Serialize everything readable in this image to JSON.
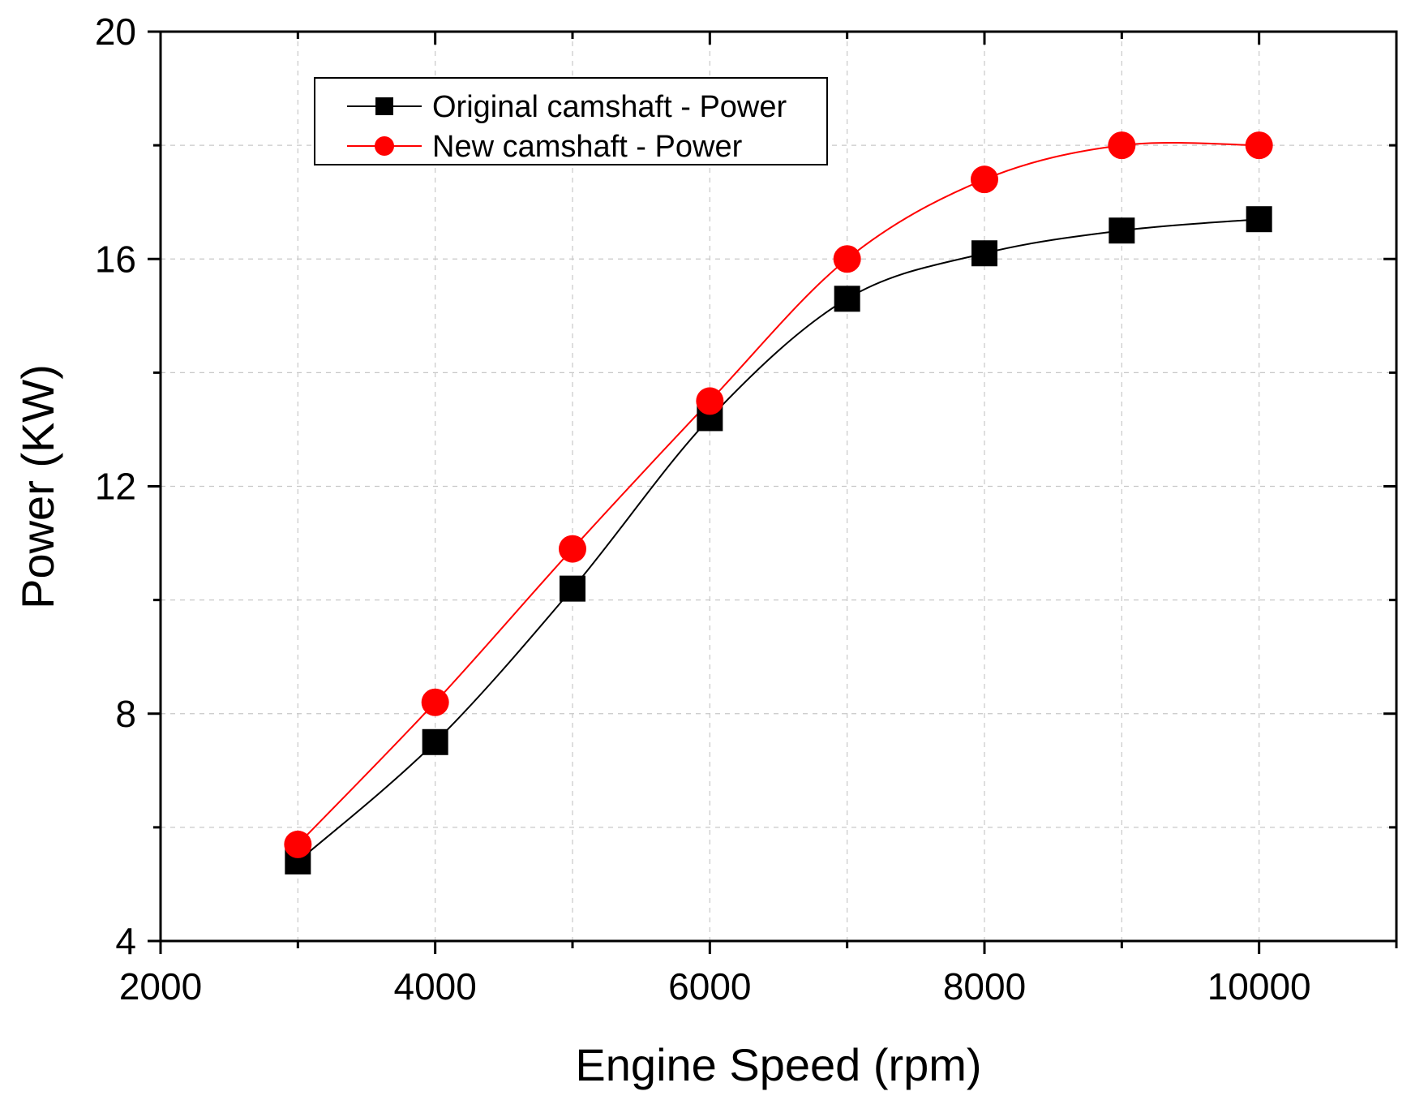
{
  "chart_data": {
    "type": "line",
    "title": "",
    "xlabel": "Engine Speed (rpm)",
    "ylabel": "Power (KW)",
    "xlim": [
      2000,
      11000
    ],
    "ylim": [
      4,
      20
    ],
    "xticks": [
      2000,
      4000,
      6000,
      8000,
      10000
    ],
    "yticks": [
      4,
      8,
      12,
      16,
      20
    ],
    "x_minor_ticks": [
      3000,
      5000,
      7000,
      9000,
      11000
    ],
    "y_minor_ticks": [
      6,
      10,
      14,
      18
    ],
    "grid": true,
    "legend_position": "top-left",
    "x": [
      3000,
      4000,
      5000,
      6000,
      7000,
      8000,
      9000,
      10000
    ],
    "series": [
      {
        "name": "Original camshaft - Power",
        "color": "#000000",
        "marker": "square",
        "values": [
          5.4,
          7.5,
          10.2,
          13.2,
          15.3,
          16.1,
          16.5,
          16.7
        ]
      },
      {
        "name": "New camshaft - Power",
        "color": "#ff0000",
        "marker": "circle",
        "values": [
          5.7,
          8.2,
          10.9,
          13.5,
          16.0,
          17.4,
          18.0,
          18.0
        ]
      }
    ]
  }
}
